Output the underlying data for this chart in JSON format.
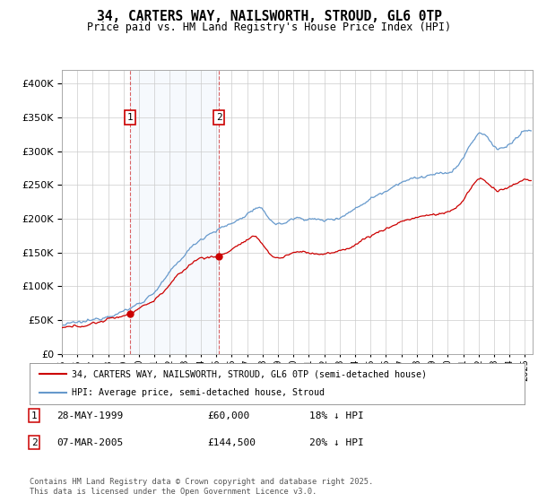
{
  "title": "34, CARTERS WAY, NAILSWORTH, STROUD, GL6 0TP",
  "subtitle": "Price paid vs. HM Land Registry's House Price Index (HPI)",
  "ylim": [
    0,
    420000
  ],
  "xlim_start": 1995.0,
  "xlim_end": 2025.5,
  "sale1_date": 1999.41,
  "sale1_price": 60000,
  "sale1_label": "1",
  "sale2_date": 2005.18,
  "sale2_price": 144500,
  "sale2_label": "2",
  "legend_line1": "34, CARTERS WAY, NAILSWORTH, STROUD, GL6 0TP (semi-detached house)",
  "legend_line2": "HPI: Average price, semi-detached house, Stroud",
  "table_row1": [
    "1",
    "28-MAY-1999",
    "£60,000",
    "18% ↓ HPI"
  ],
  "table_row2": [
    "2",
    "07-MAR-2005",
    "£144,500",
    "20% ↓ HPI"
  ],
  "footnote": "Contains HM Land Registry data © Crown copyright and database right 2025.\nThis data is licensed under the Open Government Licence v3.0.",
  "red_color": "#cc0000",
  "blue_color": "#6699cc",
  "background_color": "#ffffff",
  "grid_color": "#cccccc",
  "hpi_base_points": [
    [
      1995.0,
      42000
    ],
    [
      1996.0,
      46000
    ],
    [
      1997.0,
      50000
    ],
    [
      1998.0,
      57000
    ],
    [
      1999.0,
      63000
    ],
    [
      2000.0,
      75000
    ],
    [
      2001.0,
      92000
    ],
    [
      2002.0,
      120000
    ],
    [
      2003.0,
      148000
    ],
    [
      2004.0,
      170000
    ],
    [
      2005.0,
      183000
    ],
    [
      2006.0,
      193000
    ],
    [
      2007.0,
      207000
    ],
    [
      2007.7,
      215000
    ],
    [
      2008.5,
      200000
    ],
    [
      2009.0,
      192000
    ],
    [
      2009.5,
      195000
    ],
    [
      2010.0,
      200000
    ],
    [
      2011.0,
      200000
    ],
    [
      2012.0,
      198000
    ],
    [
      2013.0,
      203000
    ],
    [
      2014.0,
      215000
    ],
    [
      2015.0,
      230000
    ],
    [
      2016.0,
      242000
    ],
    [
      2017.0,
      255000
    ],
    [
      2018.0,
      260000
    ],
    [
      2019.0,
      265000
    ],
    [
      2020.0,
      268000
    ],
    [
      2021.0,
      290000
    ],
    [
      2022.0,
      325000
    ],
    [
      2022.5,
      322000
    ],
    [
      2023.0,
      308000
    ],
    [
      2023.5,
      305000
    ],
    [
      2024.0,
      310000
    ],
    [
      2024.5,
      320000
    ],
    [
      2025.3,
      330000
    ]
  ],
  "red_base_points": [
    [
      1995.0,
      38000
    ],
    [
      1996.0,
      41000
    ],
    [
      1997.0,
      45000
    ],
    [
      1998.0,
      51000
    ],
    [
      1999.0,
      57000
    ],
    [
      1999.41,
      60000
    ],
    [
      2000.0,
      68000
    ],
    [
      2001.0,
      80000
    ],
    [
      2002.0,
      103000
    ],
    [
      2003.0,
      126000
    ],
    [
      2004.0,
      142000
    ],
    [
      2005.18,
      144500
    ],
    [
      2005.5,
      148000
    ],
    [
      2006.0,
      155000
    ],
    [
      2006.5,
      162000
    ],
    [
      2007.0,
      168000
    ],
    [
      2007.5,
      172000
    ],
    [
      2008.0,
      163000
    ],
    [
      2008.5,
      148000
    ],
    [
      2009.0,
      142000
    ],
    [
      2009.5,
      145000
    ],
    [
      2010.0,
      150000
    ],
    [
      2011.0,
      150000
    ],
    [
      2012.0,
      148000
    ],
    [
      2013.0,
      152000
    ],
    [
      2014.0,
      162000
    ],
    [
      2015.0,
      175000
    ],
    [
      2016.0,
      185000
    ],
    [
      2017.0,
      196000
    ],
    [
      2018.0,
      202000
    ],
    [
      2019.0,
      206000
    ],
    [
      2020.0,
      210000
    ],
    [
      2021.0,
      228000
    ],
    [
      2022.0,
      258000
    ],
    [
      2022.5,
      255000
    ],
    [
      2023.0,
      244000
    ],
    [
      2023.5,
      242000
    ],
    [
      2024.0,
      246000
    ],
    [
      2024.5,
      253000
    ],
    [
      2025.3,
      258000
    ]
  ]
}
